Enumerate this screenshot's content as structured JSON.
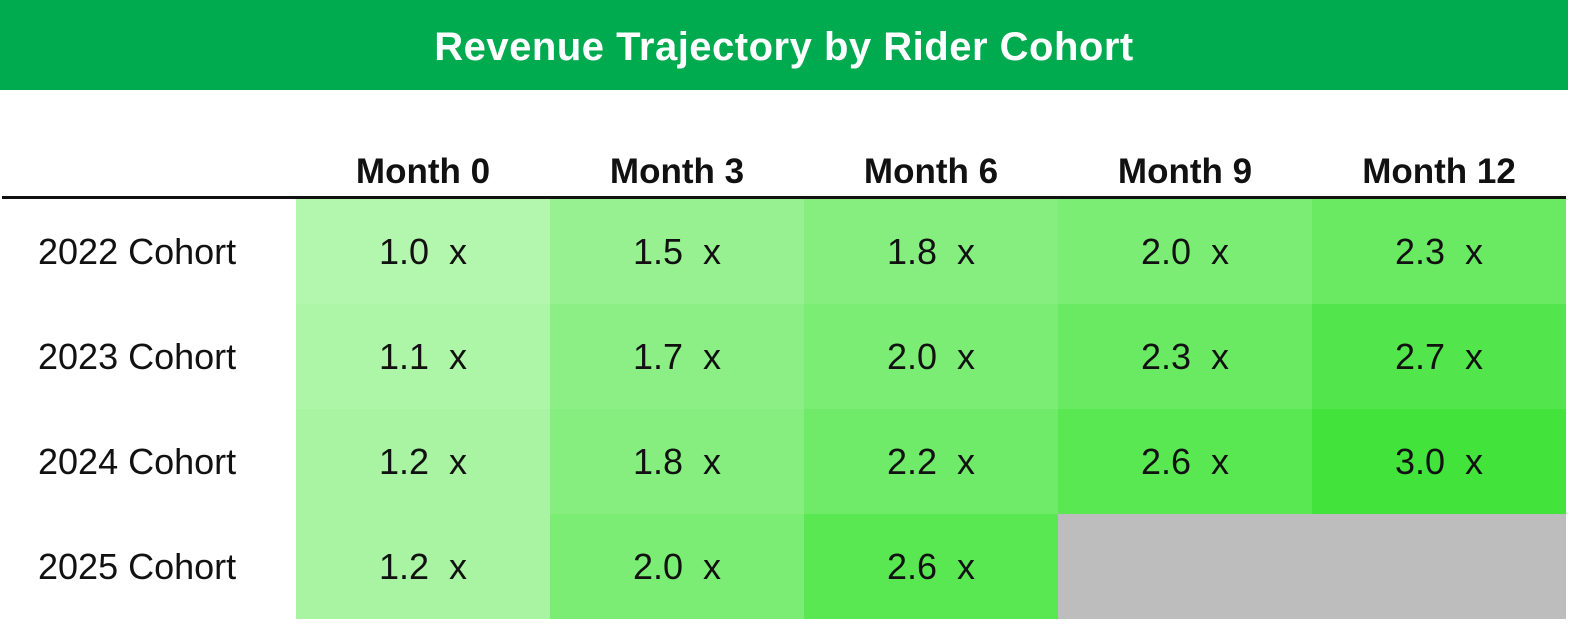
{
  "chart_data": {
    "type": "heatmap",
    "title": "Revenue Trajectory by Rider Cohort",
    "columns": [
      "Month 0",
      "Month 3",
      "Month 6",
      "Month 9",
      "Month 12"
    ],
    "rows": [
      "2022 Cohort",
      "2023 Cohort",
      "2024 Cohort",
      "2025 Cohort"
    ],
    "values": [
      [
        1.0,
        1.5,
        1.8,
        2.0,
        2.3
      ],
      [
        1.1,
        1.7,
        2.0,
        2.3,
        2.7
      ],
      [
        1.2,
        1.8,
        2.2,
        2.6,
        3.0
      ],
      [
        1.2,
        2.0,
        2.6,
        null,
        null
      ]
    ],
    "value_suffix": " x",
    "value_decimals": 1,
    "color_scale": {
      "min_value": 1.0,
      "max_value": 3.0,
      "min_color": "#b3f6ad",
      "max_color": "#42e33b"
    },
    "missing_color": "#bdbdbd",
    "header_color": "#00aa4f"
  }
}
